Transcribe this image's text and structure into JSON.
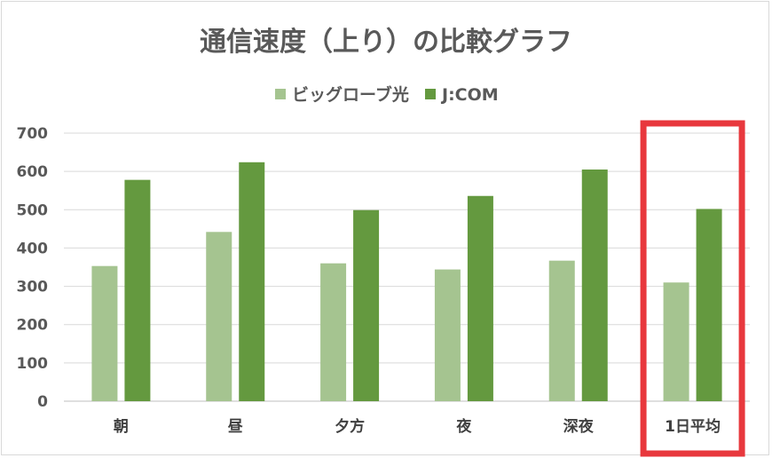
{
  "chart_data": {
    "type": "bar",
    "title": "通信速度（上り）の比較グラフ",
    "xlabel": "",
    "ylabel": "",
    "categories": [
      "朝",
      "昼",
      "夕方",
      "夜",
      "深夜",
      "1日平均"
    ],
    "series": [
      {
        "name": "ビッグローブ光",
        "color": "#a5c490",
        "values": [
          353,
          442,
          360,
          344,
          367,
          310
        ]
      },
      {
        "name": "J:COM",
        "color": "#64993f",
        "values": [
          578,
          624,
          499,
          536,
          605,
          502
        ]
      }
    ],
    "ylim": [
      0,
      700
    ],
    "yticks": [
      "0",
      "100",
      "200",
      "300",
      "400",
      "500",
      "600",
      "700"
    ],
    "grid": true,
    "legend": "top-center",
    "highlight": {
      "category": "1日平均",
      "color": "#e8383d"
    }
  }
}
